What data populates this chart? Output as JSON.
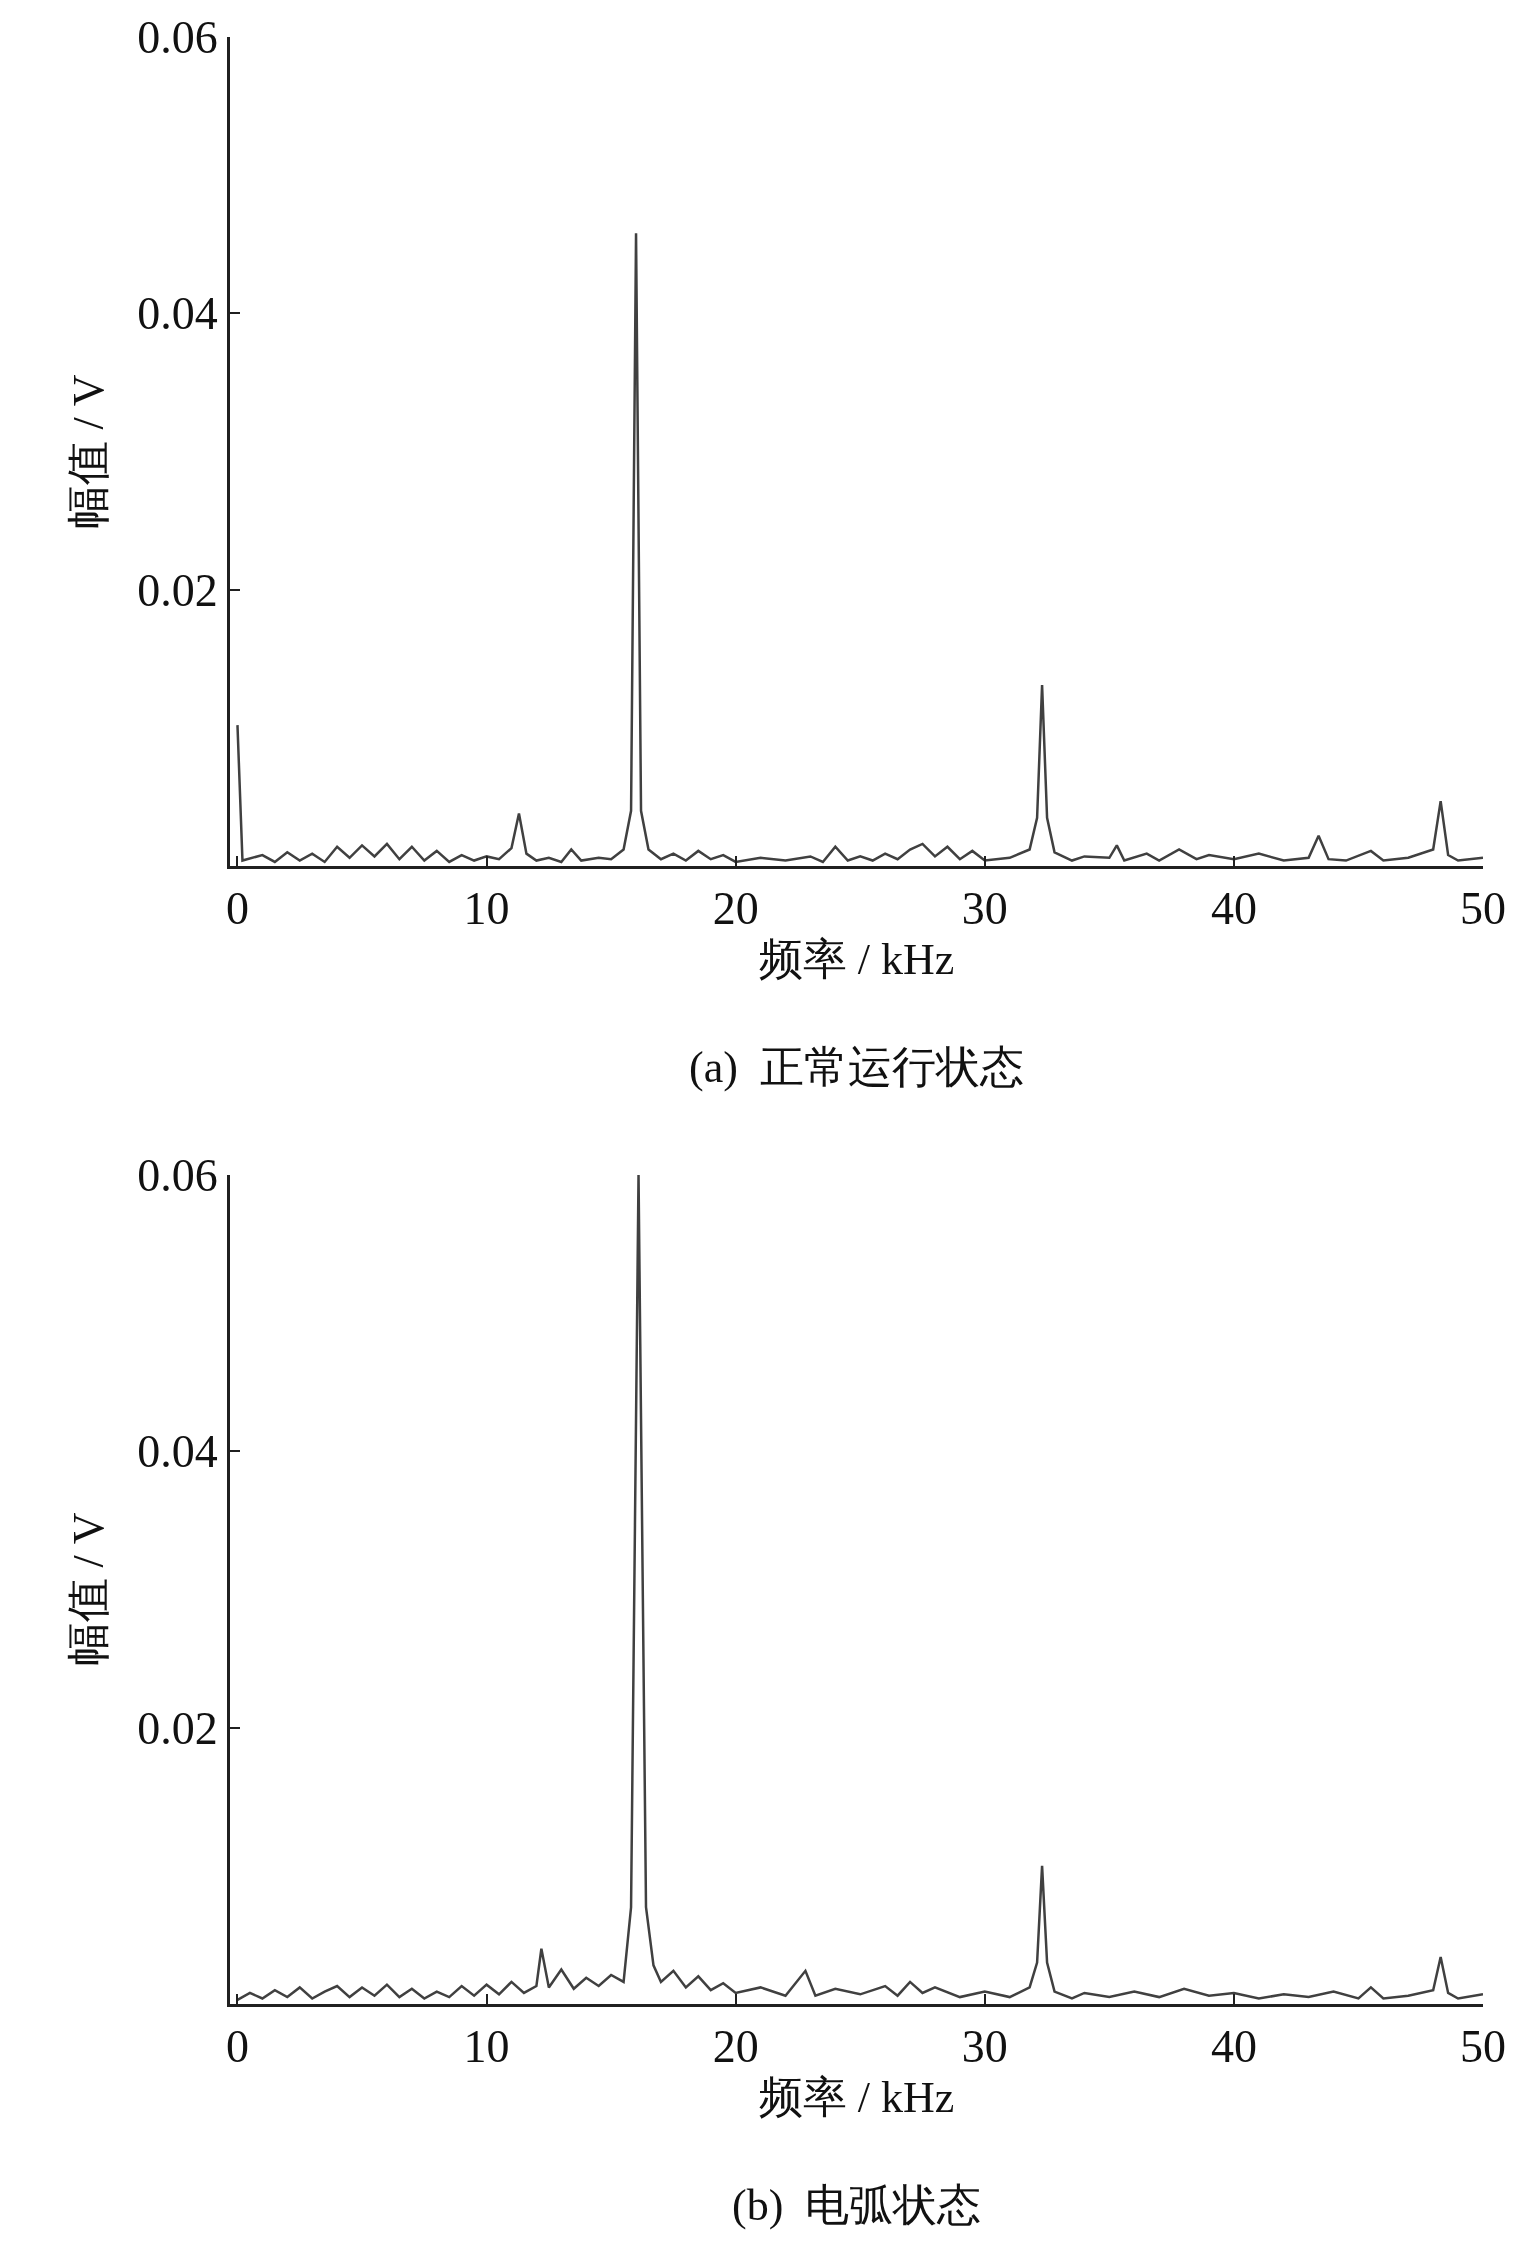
{
  "chart_data": [
    {
      "type": "line",
      "title": "(a)  正常运行状态",
      "xlabel": "频率 / kHz",
      "ylabel": "幅值 / V",
      "xlim": [
        -0.3,
        50
      ],
      "xticks": [
        0,
        10,
        20,
        30,
        40,
        50
      ],
      "ylim": [
        0,
        0.06
      ],
      "yticks": [
        0.02,
        0.04,
        0.06
      ],
      "marker": "none",
      "line_style": "solid",
      "series": [
        {
          "color": "#404040",
          "x": [
            0,
            0.2,
            1,
            1.5,
            2,
            2.5,
            3,
            3.5,
            4,
            4.5,
            5,
            5.5,
            6,
            6.5,
            7,
            7.5,
            8,
            8.5,
            9,
            9.5,
            10,
            10.5,
            11,
            11.3,
            11.6,
            12,
            12.5,
            13,
            13.4,
            13.8,
            14.5,
            15,
            15.5,
            15.8,
            16.0,
            16.2,
            16.5,
            17,
            17.5,
            18,
            18.5,
            19,
            19.5,
            20,
            21,
            22,
            23,
            23.5,
            24,
            24.5,
            25,
            25.5,
            26,
            26.5,
            27,
            27.5,
            28,
            28.5,
            29,
            29.5,
            30,
            31,
            31.8,
            32.1,
            32.3,
            32.5,
            32.8,
            33.5,
            34,
            35,
            35.3,
            35.6,
            36.5,
            37,
            37.8,
            38.5,
            39,
            40,
            41,
            42,
            43,
            43.4,
            43.8,
            44.5,
            45.5,
            46,
            47,
            48,
            48.3,
            48.6,
            49,
            50
          ],
          "values": [
            0.0102,
            0.0004,
            0.0008,
            0.0003,
            0.001,
            0.0004,
            0.0009,
            0.0003,
            0.0014,
            0.0006,
            0.0015,
            0.0007,
            0.0016,
            0.0005,
            0.0014,
            0.0004,
            0.0011,
            0.0003,
            0.0008,
            0.0004,
            0.0007,
            0.0005,
            0.0013,
            0.0038,
            0.0009,
            0.0004,
            0.0006,
            0.0003,
            0.0012,
            0.0004,
            0.0006,
            0.0005,
            0.0012,
            0.004,
            0.0458,
            0.004,
            0.0012,
            0.0005,
            0.0009,
            0.0004,
            0.0011,
            0.0005,
            0.0008,
            0.0003,
            0.0006,
            0.0004,
            0.0007,
            0.0003,
            0.0014,
            0.0004,
            0.0007,
            0.0004,
            0.0009,
            0.0005,
            0.0012,
            0.0016,
            0.0007,
            0.0014,
            0.0005,
            0.0011,
            0.0004,
            0.0006,
            0.0012,
            0.0035,
            0.0131,
            0.0035,
            0.001,
            0.0004,
            0.0007,
            0.0006,
            0.0015,
            0.0004,
            0.0009,
            0.0004,
            0.0012,
            0.0005,
            0.0008,
            0.0005,
            0.0009,
            0.0004,
            0.0006,
            0.0022,
            0.0005,
            0.0004,
            0.0011,
            0.0004,
            0.0006,
            0.0012,
            0.0047,
            0.0008,
            0.0004,
            0.0006
          ]
        }
      ]
    },
    {
      "type": "line",
      "title": "(b)  电弧状态",
      "xlabel": "频率 / kHz",
      "ylabel": "幅值 / V",
      "xlim": [
        -0.3,
        50
      ],
      "xticks": [
        0,
        10,
        20,
        30,
        40,
        50
      ],
      "ylim": [
        0,
        0.06
      ],
      "yticks": [
        0.02,
        0.04,
        0.06
      ],
      "marker": "none",
      "line_style": "solid",
      "series": [
        {
          "color": "#404040",
          "x": [
            0,
            0.5,
            1,
            1.5,
            2,
            2.5,
            3,
            3.5,
            4,
            4.5,
            5,
            5.5,
            6,
            6.5,
            7,
            7.5,
            8,
            8.5,
            9,
            9.5,
            10,
            10.5,
            11,
            11.5,
            12,
            12.2,
            12.5,
            13,
            13.5,
            14,
            14.5,
            15,
            15.5,
            15.8,
            16.1,
            16.4,
            16.7,
            17,
            17.5,
            18,
            18.5,
            19,
            19.5,
            20,
            21,
            22,
            22.8,
            23.2,
            24,
            25,
            26,
            26.5,
            27,
            27.5,
            28,
            29,
            30,
            31,
            31.8,
            32.1,
            32.3,
            32.5,
            32.8,
            33.5,
            34,
            35,
            36,
            37,
            38,
            39,
            40,
            41,
            42,
            43,
            44,
            45,
            45.5,
            46,
            47,
            48,
            48.3,
            48.6,
            49,
            50
          ],
          "values": [
            0.0003,
            0.0008,
            0.0004,
            0.001,
            0.0005,
            0.0012,
            0.0004,
            0.0009,
            0.0013,
            0.0005,
            0.0012,
            0.0006,
            0.0014,
            0.0005,
            0.0011,
            0.0004,
            0.0009,
            0.0005,
            0.0013,
            0.0006,
            0.0014,
            0.0007,
            0.0016,
            0.0008,
            0.0013,
            0.004,
            0.0012,
            0.0025,
            0.0011,
            0.0019,
            0.0013,
            0.0021,
            0.0016,
            0.007,
            0.06,
            0.007,
            0.0028,
            0.0016,
            0.0024,
            0.0012,
            0.002,
            0.001,
            0.0015,
            0.0008,
            0.0012,
            0.0006,
            0.0024,
            0.0006,
            0.0011,
            0.0007,
            0.0013,
            0.0006,
            0.0016,
            0.0008,
            0.0012,
            0.0005,
            0.0009,
            0.0005,
            0.0012,
            0.003,
            0.01,
            0.003,
            0.0009,
            0.0004,
            0.0008,
            0.0005,
            0.0009,
            0.0005,
            0.0011,
            0.0006,
            0.0008,
            0.0004,
            0.0007,
            0.0005,
            0.0009,
            0.0004,
            0.0012,
            0.0004,
            0.0006,
            0.001,
            0.0034,
            0.0008,
            0.0004,
            0.0007
          ]
        }
      ]
    }
  ]
}
